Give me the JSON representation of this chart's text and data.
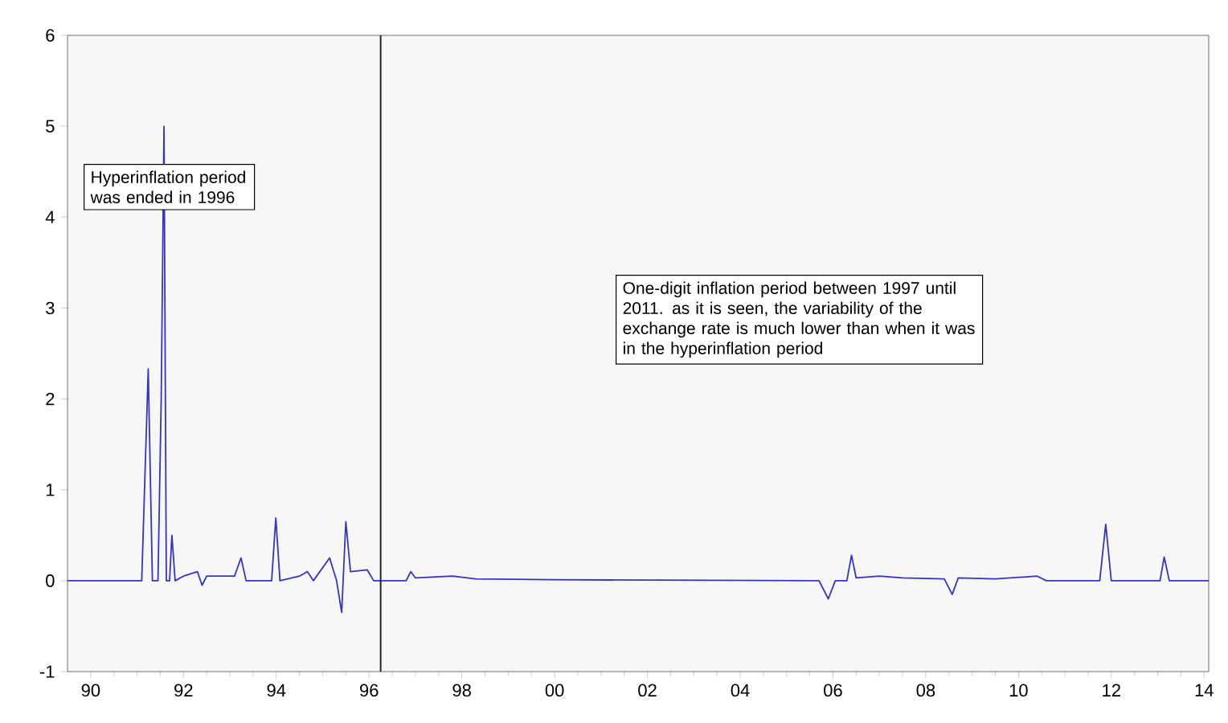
{
  "chart_data": {
    "type": "line",
    "xlim": [
      1989.5,
      2014.1
    ],
    "ylim": [
      -1,
      6
    ],
    "xticks": [
      {
        "value": 1990,
        "label": "90"
      },
      {
        "value": 1992,
        "label": "92"
      },
      {
        "value": 1994,
        "label": "94"
      },
      {
        "value": 1996,
        "label": "96"
      },
      {
        "value": 1998,
        "label": "98"
      },
      {
        "value": 2000,
        "label": "00"
      },
      {
        "value": 2002,
        "label": "02"
      },
      {
        "value": 2004,
        "label": "04"
      },
      {
        "value": 2006,
        "label": "06"
      },
      {
        "value": 2008,
        "label": "08"
      },
      {
        "value": 2010,
        "label": "10"
      },
      {
        "value": 2012,
        "label": "12"
      },
      {
        "value": 2014,
        "label": "14"
      }
    ],
    "yticks": [
      -1,
      0,
      1,
      2,
      3,
      4,
      5,
      6
    ],
    "grid": false,
    "marker": "none",
    "line_style": "solid",
    "ref_lines": [
      {
        "axis": "x",
        "value": 1996.25,
        "color": "#222222"
      }
    ],
    "annotations": [
      "Hyperinflation period was ended in 1996",
      "One-digit inflation period between 1997 until 2011. as it is seen, the variability of the exchange rate is much lower than when it was in the hyperinflation period"
    ],
    "series": [
      {
        "color": "#3333cc",
        "x": [
          1989.5,
          1991.1,
          1991.24,
          1991.33,
          1991.45,
          1991.52,
          1991.58,
          1991.63,
          1991.7,
          1991.75,
          1991.82,
          1992.0,
          1992.3,
          1992.4,
          1992.5,
          1992.7,
          1993.1,
          1993.24,
          1993.35,
          1993.9,
          1993.99,
          1994.08,
          1994.5,
          1994.67,
          1994.8,
          1995.15,
          1995.3,
          1995.41,
          1995.5,
          1995.6,
          1995.96,
          1996.1,
          1996.8,
          1996.9,
          1997.0,
          1997.8,
          1998.3,
          2000.0,
          2005.7,
          2005.9,
          2006.05,
          2006.3,
          2006.4,
          2006.5,
          2007.0,
          2007.5,
          2008.4,
          2008.57,
          2008.7,
          2009.5,
          2010.4,
          2010.6,
          2011.75,
          2011.88,
          2012.0,
          2013.05,
          2013.14,
          2013.25,
          2014.1
        ],
        "values": [
          0,
          0,
          2.33,
          0,
          0,
          2.0,
          5.0,
          0,
          0,
          0.5,
          0,
          0.05,
          0.1,
          -0.05,
          0.05,
          0.05,
          0.05,
          0.25,
          0,
          0,
          0.69,
          0,
          0.05,
          0.1,
          0,
          0.25,
          0,
          -0.35,
          0.65,
          0.1,
          0.12,
          0,
          0,
          0.1,
          0.03,
          0.05,
          0.02,
          0.01,
          0,
          -0.2,
          0,
          0,
          0.28,
          0.03,
          0.05,
          0.03,
          0.02,
          -0.15,
          0.03,
          0.02,
          0.05,
          0,
          0,
          0.62,
          0,
          0,
          0.26,
          0,
          0
        ]
      }
    ]
  }
}
